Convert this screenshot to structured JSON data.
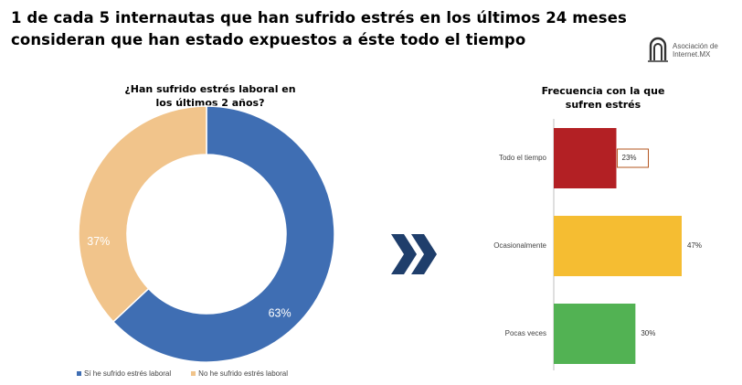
{
  "headline": {
    "line1": "1 de cada 5 internautas que han sufrido estrés en los últimos 24 meses",
    "line2": "consideran que han estado expuestos a éste todo el tiempo"
  },
  "logo": {
    "text_line1": "Asociación de",
    "text_line2": "Internet.MX"
  },
  "colors": {
    "blue": "#3f6eb3",
    "peach": "#f1c48b",
    "red": "#b32024",
    "yellow": "#f5bd32",
    "green": "#52b253",
    "arrow": "#1f3e6b"
  },
  "chart_data": [
    {
      "type": "pie",
      "subtype": "donut",
      "title": "¿Han sufrido estrés laboral en los últimos 2 años?",
      "title_line1": "¿Han sufrido estrés laboral en",
      "title_line2": "los últimos 2 años?",
      "slices": [
        {
          "name": "Sí he sufrido estrés laboral",
          "value": 63,
          "label": "63%",
          "color": "#3f6eb3"
        },
        {
          "name": "No he sufrido estrés laboral",
          "value": 37,
          "label": "37%",
          "color": "#f1c48b"
        }
      ],
      "legend": "bottom"
    },
    {
      "type": "bar",
      "orientation": "horizontal",
      "title": "Frecuencia con la que sufren estrés",
      "title_line1": "Frecuencia con la que",
      "title_line2": "sufren estrés",
      "categories": [
        "Todo el tiempo",
        "Ocasionalmente",
        "Pocas veces"
      ],
      "values": [
        23,
        47,
        30
      ],
      "labels": [
        "23%",
        "47%",
        "30%"
      ],
      "colors": [
        "#b32024",
        "#f5bd32",
        "#52b253"
      ],
      "xlim": [
        0,
        47
      ]
    }
  ]
}
